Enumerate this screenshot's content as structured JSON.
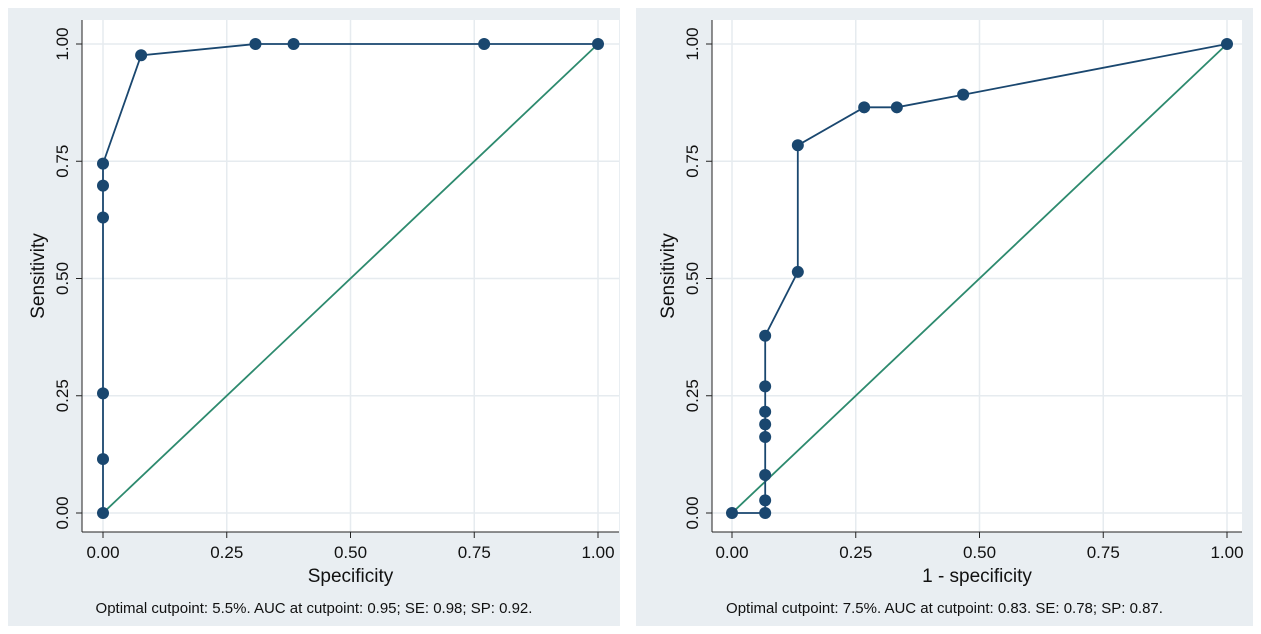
{
  "colors": {
    "outer_bg": "#e9eef2",
    "plot_bg": "#ffffff",
    "grid": "#e6ebef",
    "roc_line": "#1a476f",
    "reference_line": "#2d8a6e",
    "axis": "#222222"
  },
  "chart_data": [
    {
      "type": "line",
      "title": "",
      "xlabel": "Specificity",
      "ylabel": "Sensitivity",
      "xlim": [
        0,
        1
      ],
      "ylim": [
        0,
        1
      ],
      "x_ticks": [
        0,
        0.25,
        0.5,
        0.75,
        1
      ],
      "y_ticks": [
        0,
        0.25,
        0.5,
        0.75,
        1
      ],
      "x_tick_labels": [
        "0.00",
        "0.25",
        "0.50",
        "0.75",
        "1.00"
      ],
      "y_tick_labels": [
        "0.00",
        "0.25",
        "0.50",
        "0.75",
        "1.00"
      ],
      "grid": true,
      "note": "Optimal cutpoint: 5.5%. AUC at cutpoint: 0.95; SE: 0.98; SP: 0.92.",
      "reference_line": [
        [
          0,
          0
        ],
        [
          1,
          1
        ]
      ],
      "series": [
        {
          "points": [
            [
              0,
              0
            ],
            [
              0,
              0.115
            ],
            [
              0,
              0.255
            ],
            [
              0,
              0.63
            ],
            [
              0,
              0.698
            ],
            [
              0,
              0.745
            ],
            [
              0.077,
              0.976
            ],
            [
              0.308,
              1
            ],
            [
              0.385,
              1
            ],
            [
              0.77,
              1
            ],
            [
              1,
              1
            ]
          ]
        }
      ]
    },
    {
      "type": "line",
      "title": "",
      "xlabel": "1 - specificity",
      "ylabel": "Sensitivity",
      "xlim": [
        0,
        1
      ],
      "ylim": [
        0,
        1
      ],
      "x_ticks": [
        0,
        0.25,
        0.5,
        0.75,
        1
      ],
      "y_ticks": [
        0,
        0.25,
        0.5,
        0.75,
        1
      ],
      "x_tick_labels": [
        "0.00",
        "0.25",
        "0.50",
        "0.75",
        "1.00"
      ],
      "y_tick_labels": [
        "0.00",
        "0.25",
        "0.50",
        "0.75",
        "1.00"
      ],
      "grid": true,
      "note": "Optimal cutpoint: 7.5%. AUC at cutpoint: 0.83. SE: 0.78; SP: 0.87.",
      "reference_line": [
        [
          0,
          0
        ],
        [
          1,
          1
        ]
      ],
      "series": [
        {
          "points": [
            [
              0,
              0
            ],
            [
              0.067,
              0
            ],
            [
              0.067,
              0.027
            ],
            [
              0.067,
              0.081
            ],
            [
              0.067,
              0.162
            ],
            [
              0.067,
              0.189
            ],
            [
              0.067,
              0.216
            ],
            [
              0.067,
              0.27
            ],
            [
              0.067,
              0.378
            ],
            [
              0.133,
              0.514
            ],
            [
              0.133,
              0.784
            ],
            [
              0.267,
              0.865
            ],
            [
              0.333,
              0.865
            ],
            [
              0.467,
              0.892
            ],
            [
              1,
              1
            ]
          ]
        }
      ]
    }
  ]
}
